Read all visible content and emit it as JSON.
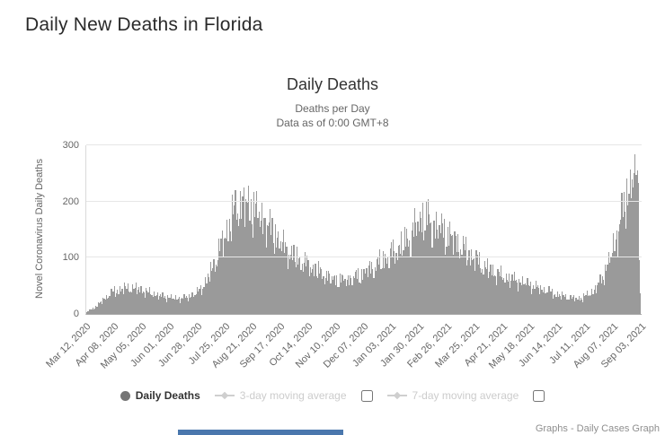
{
  "page": {
    "title": "Daily New Deaths in Florida"
  },
  "footer": {
    "text": "Graphs - Daily Cases Graph"
  },
  "legend": {
    "daily_deaths_label": "Daily Deaths",
    "ma3_label": "3-day moving average",
    "ma7_label": "7-day moving average",
    "colors": {
      "active_text": "#333333",
      "inactive_text": "#cccccc",
      "marker": "#757575"
    }
  },
  "chart_data": {
    "type": "bar",
    "title": "Daily Deaths",
    "subtitle_line1": "Deaths per Day",
    "subtitle_line2": "Data as of 0:00 GMT+8",
    "ylabel": "Novel Coronavirus Daily Deaths",
    "ylim": [
      0,
      300
    ],
    "yticks": [
      0,
      100,
      200,
      300
    ],
    "grid": true,
    "legend_position": "bottom",
    "bar_color": "#9a9a9a",
    "series": [
      {
        "name": "Daily Deaths",
        "type": "column",
        "visible": true
      },
      {
        "name": "3-day moving average",
        "type": "line",
        "visible": false
      },
      {
        "name": "7-day moving average",
        "type": "line",
        "visible": false
      }
    ],
    "x_tick_labels": [
      "Mar 12, 2020",
      "Apr 08, 2020",
      "May 05, 2020",
      "Jun 01, 2020",
      "Jun 28, 2020",
      "Jul 25, 2020",
      "Aug 21, 2020",
      "Sep 17, 2020",
      "Oct 14, 2020",
      "Nov 10, 2020",
      "Dec 07, 2020",
      "Jan 03, 2021",
      "Jan 30, 2021",
      "Feb 26, 2021",
      "Mar 25, 2021",
      "Apr 21, 2021",
      "May 18, 2021",
      "Jun 14, 2021",
      "Jul 11, 2021",
      "Aug 07, 2021",
      "Sep 03, 2021"
    ],
    "x_tick_interval_days": 27,
    "days_total": 541,
    "estimated_daily_deaths_keyframes": [
      [
        0,
        3
      ],
      [
        8,
        12
      ],
      [
        18,
        30
      ],
      [
        27,
        42
      ],
      [
        38,
        48
      ],
      [
        50,
        46
      ],
      [
        60,
        40
      ],
      [
        72,
        33
      ],
      [
        85,
        29
      ],
      [
        97,
        30
      ],
      [
        107,
        38
      ],
      [
        115,
        55
      ],
      [
        123,
        85
      ],
      [
        131,
        125
      ],
      [
        139,
        165
      ],
      [
        146,
        195
      ],
      [
        153,
        205
      ],
      [
        159,
        200
      ],
      [
        166,
        190
      ],
      [
        174,
        170
      ],
      [
        182,
        150
      ],
      [
        191,
        128
      ],
      [
        200,
        108
      ],
      [
        212,
        95
      ],
      [
        224,
        80
      ],
      [
        236,
        68
      ],
      [
        248,
        62
      ],
      [
        258,
        66
      ],
      [
        268,
        74
      ],
      [
        280,
        88
      ],
      [
        292,
        104
      ],
      [
        304,
        120
      ],
      [
        314,
        140
      ],
      [
        322,
        165
      ],
      [
        328,
        180
      ],
      [
        334,
        172
      ],
      [
        342,
        162
      ],
      [
        352,
        148
      ],
      [
        362,
        130
      ],
      [
        372,
        112
      ],
      [
        382,
        96
      ],
      [
        392,
        82
      ],
      [
        402,
        72
      ],
      [
        414,
        64
      ],
      [
        426,
        58
      ],
      [
        438,
        50
      ],
      [
        450,
        42
      ],
      [
        462,
        34
      ],
      [
        474,
        29
      ],
      [
        484,
        30
      ],
      [
        494,
        42
      ],
      [
        502,
        62
      ],
      [
        510,
        100
      ],
      [
        518,
        150
      ],
      [
        526,
        210
      ],
      [
        532,
        255
      ],
      [
        536,
        268
      ],
      [
        538,
        220
      ],
      [
        539,
        140
      ],
      [
        540,
        40
      ]
    ]
  }
}
